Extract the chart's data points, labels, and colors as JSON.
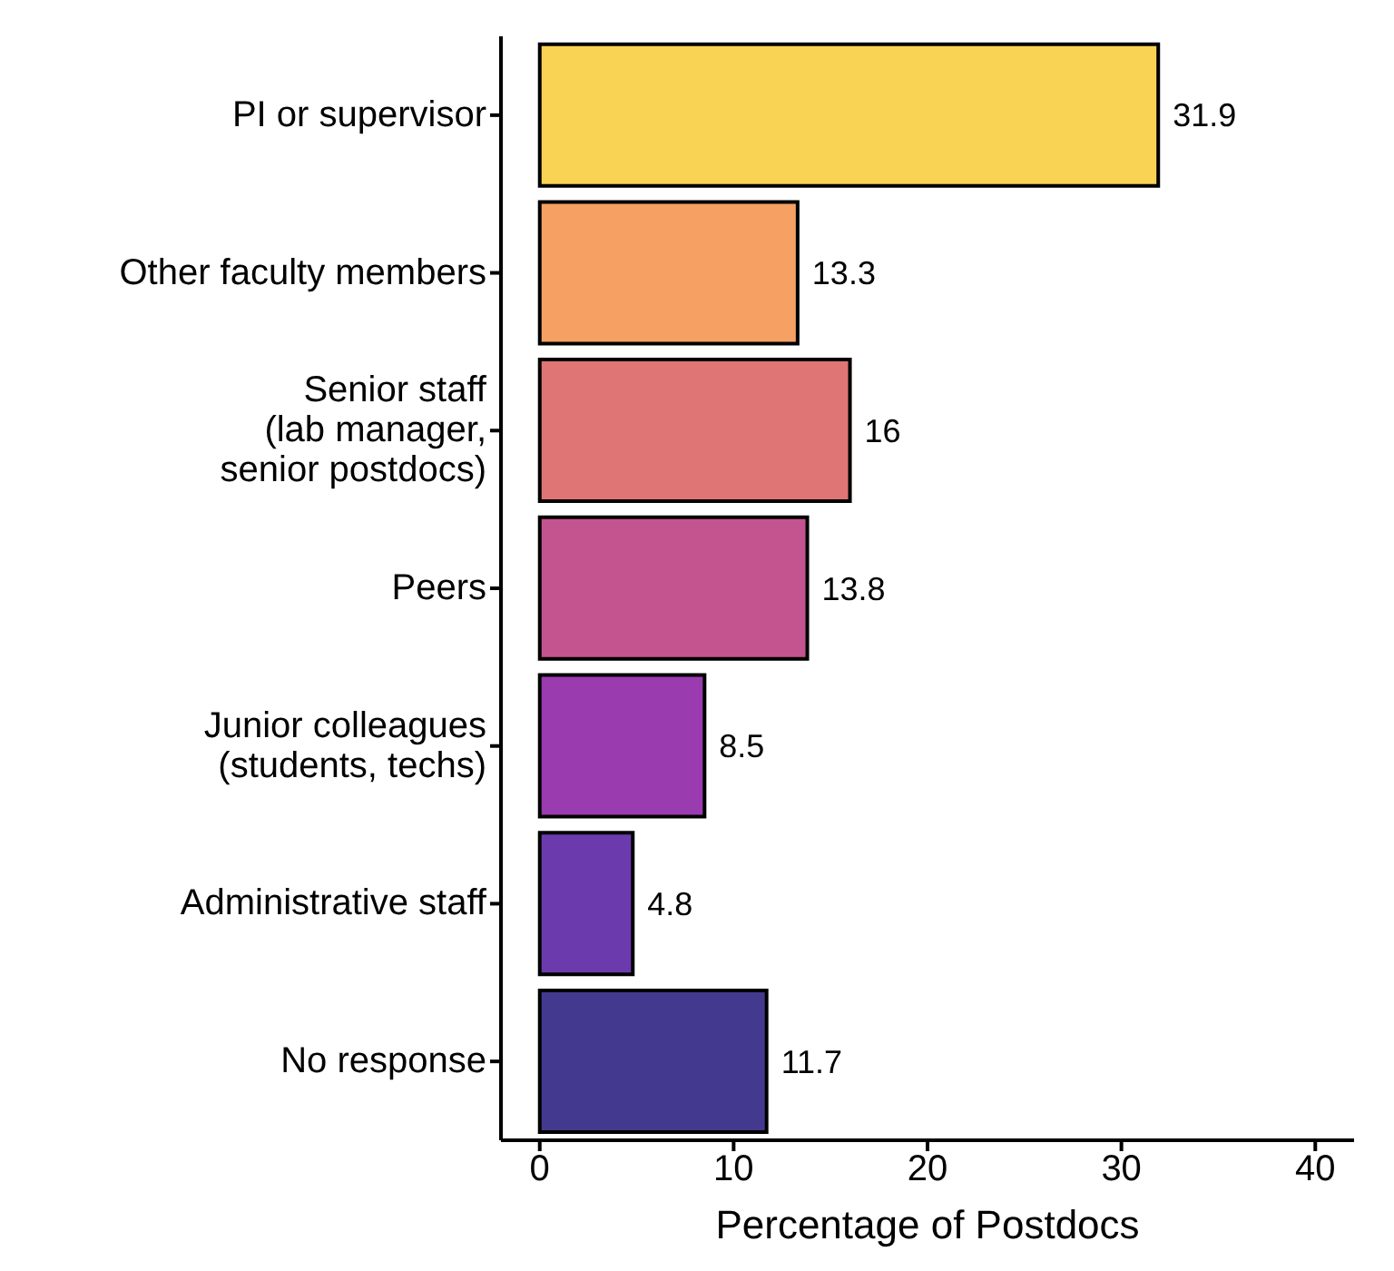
{
  "chart_data": {
    "type": "bar",
    "orientation": "horizontal",
    "xlabel": "Percentage of Postdocs",
    "categories": [
      "PI or supervisor",
      "Other faculty members",
      "Senior staff\n(lab manager,\nsenior postdocs)",
      "Peers",
      "Junior colleagues\n(students, techs)",
      "Administrative staff",
      "No response"
    ],
    "values": [
      31.9,
      13.3,
      16,
      13.8,
      8.5,
      4.8,
      11.7
    ],
    "colors": [
      "#f9d354",
      "#f6a064",
      "#e07575",
      "#c45490",
      "#9b3bb0",
      "#6b3bae",
      "#433a90"
    ],
    "xlim": [
      -2,
      42
    ],
    "xticks": [
      0,
      10,
      20,
      30,
      40
    ],
    "data_labels": true,
    "grid": false,
    "legend": false
  }
}
